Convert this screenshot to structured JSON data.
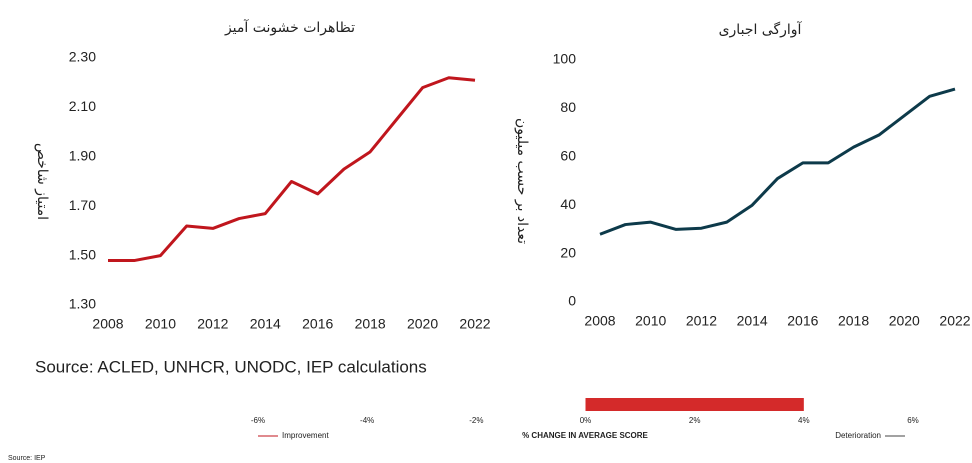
{
  "chart_data": [
    {
      "type": "line",
      "title": "تظاهرات خشونت آمیز",
      "ylabel": "امتیاز شاخص",
      "x": [
        2008,
        2009,
        2010,
        2011,
        2012,
        2013,
        2014,
        2015,
        2016,
        2017,
        2018,
        2019,
        2020,
        2021,
        2022
      ],
      "values": [
        1.48,
        1.48,
        1.5,
        1.62,
        1.61,
        1.65,
        1.67,
        1.8,
        1.75,
        1.85,
        1.92,
        2.05,
        2.18,
        2.22,
        2.21
      ],
      "color": "#c0161d",
      "xlim": [
        2008,
        2022
      ],
      "xticks": [
        2008,
        2010,
        2012,
        2014,
        2016,
        2018,
        2020,
        2022
      ],
      "ylim": [
        1.3,
        2.3
      ],
      "yticks": [
        {
          "value": 1.3,
          "label": "1.30"
        },
        {
          "value": 1.5,
          "label": "1.50"
        },
        {
          "value": 1.7,
          "label": "1.70"
        },
        {
          "value": 1.9,
          "label": "1.90"
        },
        {
          "value": 2.1,
          "label": "2.10"
        },
        {
          "value": 2.3,
          "label": "2.30"
        }
      ]
    },
    {
      "type": "line",
      "title": "آوارگی اجباری",
      "ylabel": "تعداد بر حسب میلیون",
      "x": [
        2008,
        2009,
        2010,
        2011,
        2012,
        2013,
        2014,
        2015,
        2016,
        2017,
        2018,
        2019,
        2020,
        2021,
        2022
      ],
      "values": [
        28,
        32,
        33,
        30,
        30.5,
        33,
        40,
        51,
        57.5,
        57.5,
        64,
        69,
        77,
        85,
        88
      ],
      "color": "#0d3a4a",
      "xlim": [
        2008,
        2022
      ],
      "xticks": [
        2008,
        2010,
        2012,
        2014,
        2016,
        2018,
        2020,
        2022
      ],
      "ylim": [
        0,
        100
      ],
      "yticks": [
        0,
        20,
        40,
        60,
        80,
        100
      ]
    },
    {
      "type": "hbar",
      "xlabel": "% CHANGE IN AVERAGE SCORE",
      "left_note": "Improvement",
      "right_note": "Deterioration",
      "values": [
        4
      ],
      "color": "#d42a2a",
      "xlim": [
        -6,
        6
      ],
      "xticks": [
        {
          "value": -6,
          "label": "-6%"
        },
        {
          "value": -4,
          "label": "-4%"
        },
        {
          "value": -2,
          "label": "-2%"
        },
        {
          "value": 0,
          "label": "0%"
        },
        {
          "value": 2,
          "label": "2%"
        },
        {
          "value": 4,
          "label": "4%"
        },
        {
          "value": 6,
          "label": "6%"
        }
      ]
    }
  ],
  "sources": [
    "Source: ACLED, UNHCR, UNODC, IEP calculations",
    "Source: IEP"
  ]
}
